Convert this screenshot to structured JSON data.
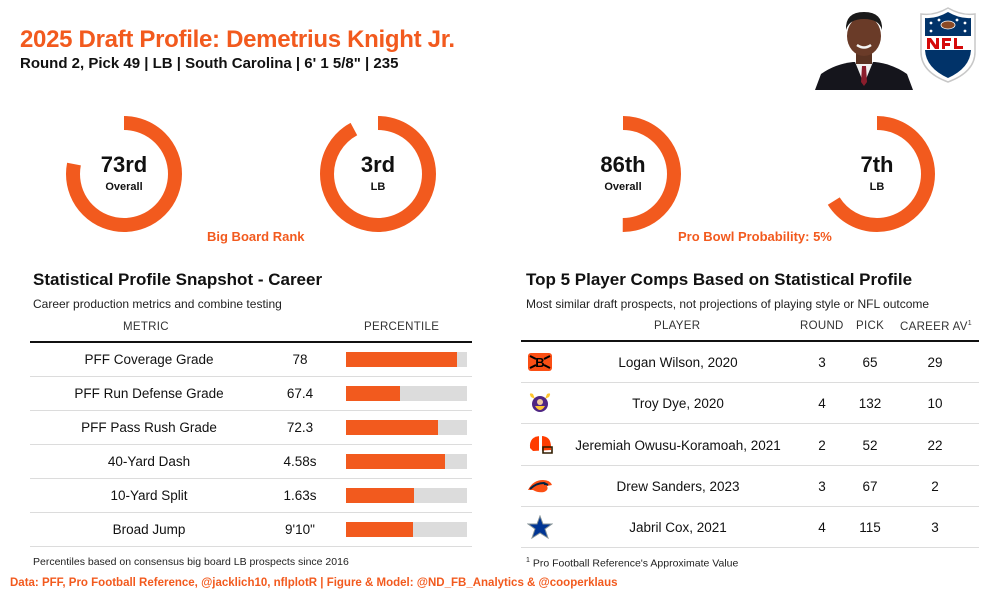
{
  "header": {
    "title": "2025 Draft Profile: Demetrius Knight Jr.",
    "subtitle": "Round 2, Pick 49 | LB | South Carolina | 6' 1 5/8\" | 235"
  },
  "colors": {
    "accent": "#f25a1e",
    "track": "#dcdcdc",
    "text": "#111111"
  },
  "rings": {
    "big_board": [
      {
        "value": "73rd",
        "label": "Overall",
        "fill_fraction": 0.78
      },
      {
        "value": "3rd",
        "label": "LB",
        "fill_fraction": 0.92
      }
    ],
    "big_board_caption": "Big Board Rank",
    "pro_bowl": [
      {
        "value": "86th",
        "label": "Overall",
        "fill_fraction": 0.5
      },
      {
        "value": "7th",
        "label": "LB",
        "fill_fraction": 0.66
      }
    ],
    "pro_bowl_caption": "Pro Bowl Probability: 5%"
  },
  "stat_panel": {
    "title": "Statistical Profile Snapshot - Career",
    "subtitle": "Career production metrics and combine testing",
    "col_metric": "METRIC",
    "col_percentile": "PERCENTILE",
    "footnote": "Percentiles based on consensus big board LB prospects since 2016"
  },
  "chart_data": {
    "type": "bar",
    "categories": [
      "PFF Coverage Grade",
      "PFF Run Defense Grade",
      "PFF Pass Rush Grade",
      "40-Yard Dash",
      "10-Yard Split",
      "Broad Jump"
    ],
    "values_display": [
      "78",
      "67.4",
      "72.3",
      "4.58s",
      "1.63s",
      "9'10\""
    ],
    "percentiles": [
      92,
      45,
      76,
      82,
      56,
      55
    ],
    "ylim": [
      0,
      100
    ]
  },
  "comps_panel": {
    "title": "Top 5 Player Comps Based on Statistical Profile",
    "subtitle": "Most similar draft prospects, not projections of playing style or NFL outcome",
    "col_player": "PLAYER",
    "col_round": "ROUND",
    "col_pick": "PICK",
    "col_av": "CAREER AV",
    "col_av_mark": "1",
    "rows": [
      {
        "player": "Logan Wilson, 2020",
        "round": "3",
        "pick": "65",
        "av": "29",
        "team_icon": "bengals-logo-icon"
      },
      {
        "player": "Troy Dye, 2020",
        "round": "4",
        "pick": "132",
        "av": "10",
        "team_icon": "vikings-logo-icon"
      },
      {
        "player": "Jeremiah Owusu-Koramoah, 2021",
        "round": "2",
        "pick": "52",
        "av": "22",
        "team_icon": "browns-logo-icon"
      },
      {
        "player": "Drew Sanders, 2023",
        "round": "3",
        "pick": "67",
        "av": "2",
        "team_icon": "broncos-logo-icon"
      },
      {
        "player": "Jabril Cox, 2021",
        "round": "4",
        "pick": "115",
        "av": "3",
        "team_icon": "cowboys-logo-icon"
      }
    ],
    "footnote_mark": "1",
    "footnote": "Pro Football Reference's Approximate Value"
  },
  "source": "Data: PFF, Pro Football Reference, @jacklich10, nflplotR | Figure & Model: @ND_FB_Analytics & @cooperklaus"
}
